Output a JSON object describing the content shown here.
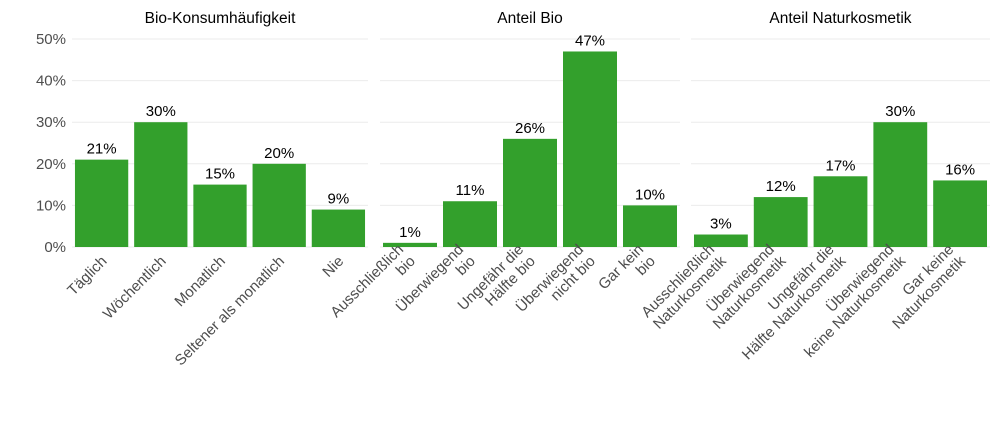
{
  "chart_data": [
    {
      "type": "bar",
      "title": "Bio-Konsumhäufigkeit",
      "categories": [
        "Täglich",
        "Wöchentlich",
        "Monatlich",
        "Seltener als monatlich",
        "Nie"
      ],
      "values": [
        21,
        30,
        15,
        20,
        9
      ],
      "value_labels": [
        "21%",
        "30%",
        "15%",
        "20%",
        "9%"
      ],
      "color": "#33a02c",
      "ylim": [
        0,
        52
      ],
      "yticks": [
        {
          "value": 0,
          "label": "0%"
        },
        {
          "value": 10,
          "label": "10%"
        },
        {
          "value": 20,
          "label": "20%"
        },
        {
          "value": 30,
          "label": "30%"
        },
        {
          "value": 40,
          "label": "40%"
        },
        {
          "value": 50,
          "label": "50%"
        }
      ],
      "grid": true
    },
    {
      "type": "bar",
      "title": "Anteil Bio",
      "categories": [
        "Ausschließlich\nbio",
        "Überwiegend\nbio",
        "Ungefähr die\nHälfte bio",
        "Überwiegend\nnicht bio",
        "Gar kein\nbio"
      ],
      "values": [
        1,
        11,
        26,
        47,
        10
      ],
      "value_labels": [
        "1%",
        "11%",
        "26%",
        "47%",
        "10%"
      ],
      "color": "#33a02c",
      "ylim": [
        0,
        52
      ],
      "yticks": [
        0,
        10,
        20,
        30,
        40,
        50
      ],
      "grid": true
    },
    {
      "type": "bar",
      "title": "Anteil Naturkosmetik",
      "categories": [
        "Ausschließlich\nNaturkosmetik",
        "Überwiegend\nNaturkosmetik",
        "Ungefähr die\nHälfte Naturkosmetik",
        "Überwiegend\nkeine Naturkosmetik",
        "Gar keine\nNaturkosmetik"
      ],
      "values": [
        3,
        12,
        17,
        30,
        16
      ],
      "value_labels": [
        "3%",
        "12%",
        "17%",
        "30%",
        "16%"
      ],
      "color": "#33a02c",
      "ylim": [
        0,
        52
      ],
      "yticks": [
        0,
        10,
        20,
        30,
        40,
        50
      ],
      "grid": true
    }
  ]
}
